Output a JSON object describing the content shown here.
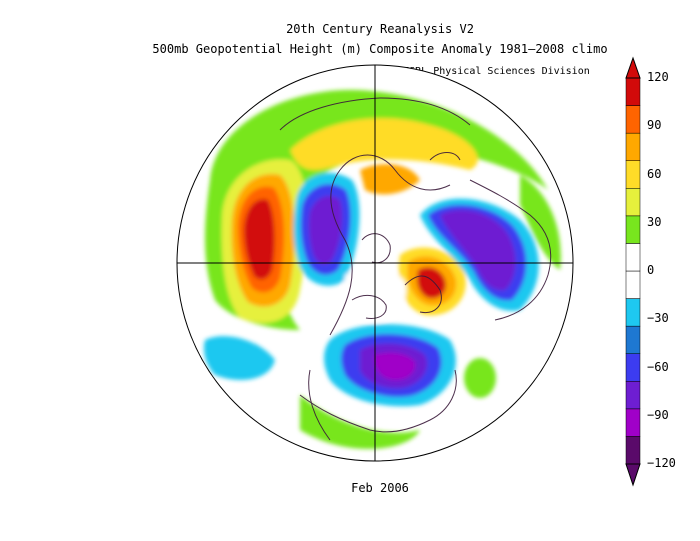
{
  "title": "20th Century Reanalysis V2",
  "subtitle": "500mb Geopotential Height (m) Composite Anomaly 1981–2008 climo",
  "credit": "NOAA/ESRL Physical Sciences Division",
  "date_label": "Feb 2006",
  "colorbar": {
    "ticks": [
      "120",
      "90",
      "60",
      "30",
      "0",
      "−30",
      "−60",
      "−90",
      "−120"
    ],
    "colors": [
      "#5a0a6a",
      "#a000c8",
      "#6e1ed2",
      "#3c3cf0",
      "#1e78d2",
      "#1ec8f0",
      "#ffffff",
      "#ffffff",
      "#78e61e",
      "#e6f03c",
      "#ffdc28",
      "#ffa800",
      "#ff6400",
      "#d20a0a"
    ]
  }
}
